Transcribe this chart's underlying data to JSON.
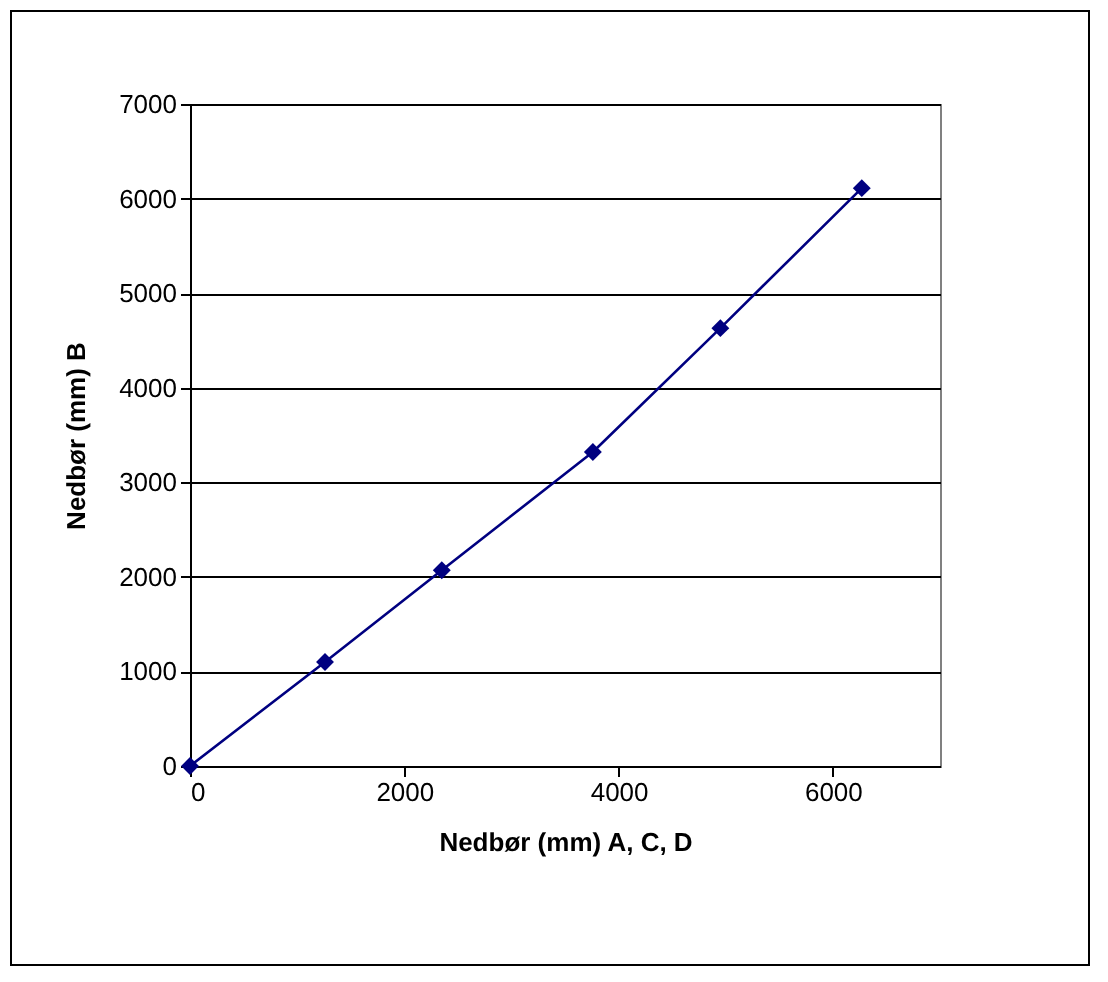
{
  "chart_data": {
    "type": "line",
    "xlabel": "Nedbør (mm) A, C, D",
    "ylabel": "Nedbør (mm) B",
    "x": [
      0,
      1260,
      2350,
      3760,
      4950,
      6270
    ],
    "series": [
      {
        "color": "#000080",
        "values": [
          0,
          1100,
          2070,
          3320,
          4630,
          6110
        ]
      }
    ],
    "xlim": [
      0,
      7000
    ],
    "xticks": [
      0,
      2000,
      4000,
      6000
    ],
    "ylim": [
      0,
      7000
    ],
    "yticks": [
      0,
      1000,
      2000,
      3000,
      4000,
      5000,
      6000,
      7000
    ],
    "grid": "y",
    "marker": "diamond",
    "line_style": "solid",
    "legend": false
  }
}
